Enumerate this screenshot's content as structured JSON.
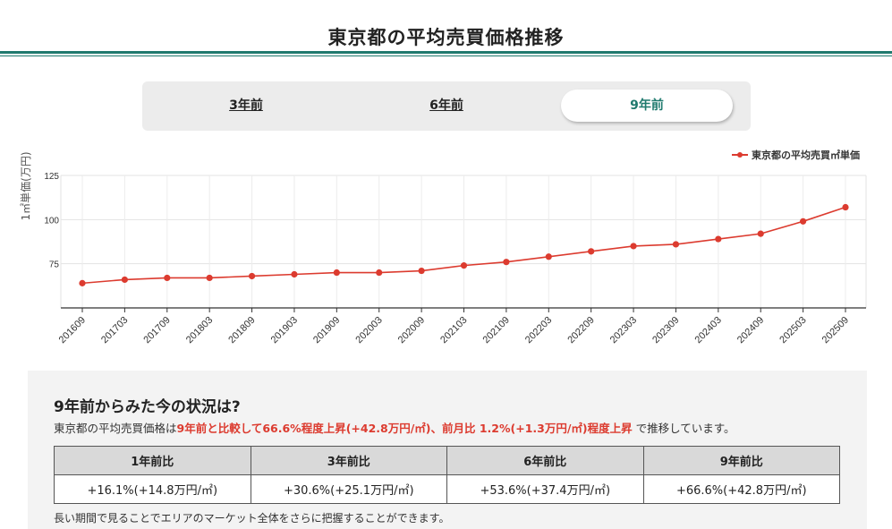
{
  "page": {
    "title": "東京都の平均売買価格推移"
  },
  "tabs": [
    {
      "label": "3年前",
      "active": false
    },
    {
      "label": "6年前",
      "active": false
    },
    {
      "label": "9年前",
      "active": true
    }
  ],
  "colors": {
    "accent": "#1f7a6e",
    "series": "#dc3b2f",
    "highlight": "#dc3b2f"
  },
  "chart_data": {
    "type": "line",
    "ylabel": "1㎡単価(万円)",
    "xlabel": "",
    "ylim": [
      50,
      125
    ],
    "yticks": [
      75,
      100,
      125
    ],
    "grid": true,
    "legend_position": "top-right",
    "categories": [
      "201609",
      "201703",
      "201709",
      "201803",
      "201809",
      "201903",
      "201909",
      "202003",
      "202009",
      "202103",
      "202109",
      "202203",
      "202209",
      "202303",
      "202309",
      "202403",
      "202409",
      "202503",
      "202509"
    ],
    "series": [
      {
        "name": "東京都の平均売買㎡単価",
        "values": [
          64,
          66,
          67,
          67,
          68,
          69,
          70,
          70,
          71,
          74,
          76,
          79,
          82,
          85,
          86,
          89,
          92,
          99,
          107
        ]
      }
    ]
  },
  "summary": {
    "heading": "9年前からみた今の状況は?",
    "text_prefix": "東京都の平均売買価格は",
    "text_highlight": "9年前と比較して66.6%程度上昇(+42.8万円/㎡)、前月比 1.2%(+1.3万円/㎡)程度上昇",
    "text_suffix": " で推移しています。",
    "table": {
      "headers": [
        "1年前比",
        "3年前比",
        "6年前比",
        "9年前比"
      ],
      "values": [
        "+16.1%(+14.8万円/㎡)",
        "+30.6%(+25.1万円/㎡)",
        "+53.6%(+37.4万円/㎡)",
        "+66.6%(+42.8万円/㎡)"
      ]
    },
    "note": "長い期間で見ることでエリアのマーケット全体をさらに把握することができます。"
  }
}
